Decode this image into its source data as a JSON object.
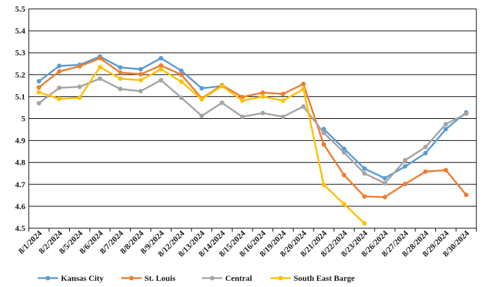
{
  "chart_data": {
    "type": "line",
    "title": "",
    "xlabel": "",
    "ylabel": "",
    "ylim": [
      4.5,
      5.5
    ],
    "yticks": [
      "5.5",
      "5.4",
      "5.3",
      "5.2",
      "5.1",
      "5",
      "4.9",
      "4.8",
      "4.7",
      "4.6",
      "4.5"
    ],
    "grid": "horizontal",
    "legend_position": "bottom",
    "categories": [
      "8/1/2024",
      "8/2/2024",
      "8/5/2024",
      "8/6/2024",
      "8/7/2024",
      "8/8/2024",
      "8/9/2024",
      "8/12/2024",
      "8/13/2024",
      "8/14/2024",
      "8/15/2024",
      "8/16/2024",
      "8/19/2024",
      "8/20/2024",
      "8/21/2024",
      "8/22/2024",
      "8/23/2024",
      "8/26/2024",
      "8/27/2024",
      "8/28/2024",
      "8/29/2024",
      "8/30/2024"
    ],
    "series": [
      {
        "name": "Kansas City",
        "color": "#5B9BD5",
        "values": [
          5.17,
          5.24,
          5.245,
          5.283,
          5.233,
          5.225,
          5.275,
          5.218,
          5.138,
          5.148,
          null,
          null,
          null,
          null,
          4.952,
          4.862,
          4.772,
          4.728,
          4.782,
          4.842,
          4.952,
          5.028
        ]
      },
      {
        "name": "St. Louis",
        "color": "#ED7D31",
        "values": [
          5.142,
          5.215,
          5.238,
          5.275,
          5.21,
          5.202,
          5.242,
          5.2,
          5.092,
          5.152,
          5.098,
          5.118,
          5.112,
          5.158,
          4.882,
          4.742,
          4.645,
          4.642,
          4.702,
          4.758,
          4.765,
          4.652
        ]
      },
      {
        "name": "Central",
        "color": "#A5A5A5",
        "values": [
          5.07,
          5.14,
          5.145,
          5.182,
          5.135,
          5.125,
          5.175,
          5.095,
          5.012,
          5.072,
          5.008,
          5.025,
          5.008,
          5.055,
          4.935,
          4.845,
          4.75,
          4.705,
          4.81,
          4.87,
          4.975,
          5.022
        ]
      },
      {
        "name": "South East Barge",
        "color": "#FFC000",
        "values": [
          5.12,
          5.09,
          5.095,
          5.235,
          5.182,
          5.175,
          5.225,
          5.168,
          5.088,
          5.148,
          5.082,
          5.1,
          5.082,
          5.135,
          4.698,
          4.61,
          4.522,
          null,
          null,
          null,
          null,
          null
        ]
      }
    ]
  }
}
